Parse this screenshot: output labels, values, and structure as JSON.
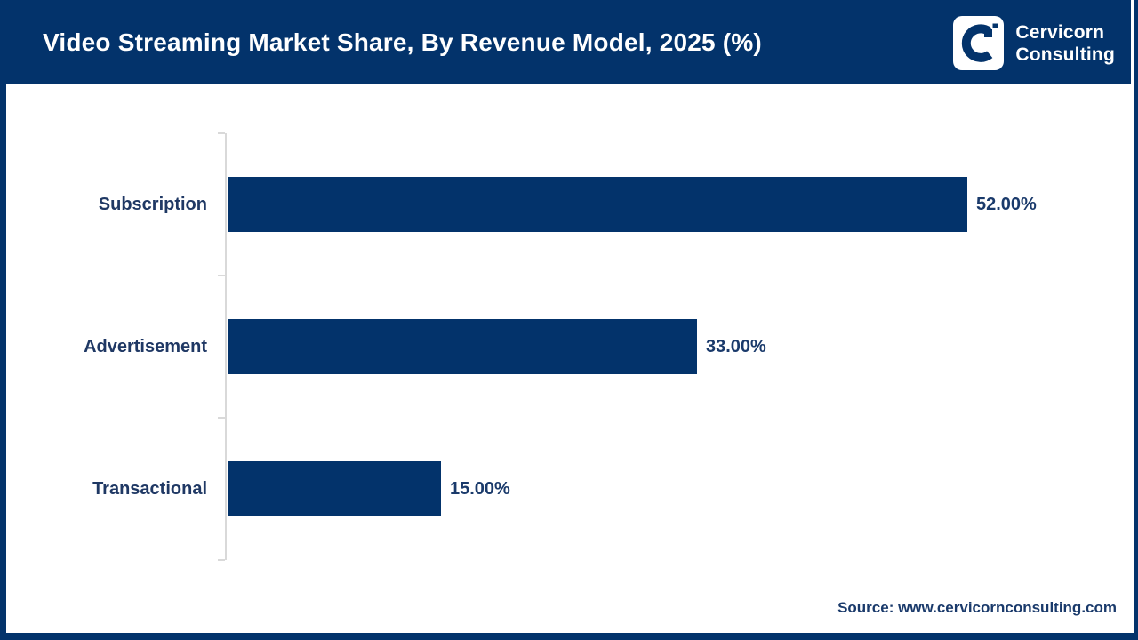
{
  "header": {
    "title": "Video Streaming Market Share, By Revenue Model, 2025 (%)",
    "brand": {
      "line1": "Cervicorn",
      "line2": "Consulting"
    }
  },
  "chart_data": {
    "type": "bar",
    "orientation": "horizontal",
    "title": "Video Streaming Market Share, By Revenue Model, 2025 (%)",
    "categories": [
      "Subscription",
      "Advertisement",
      "Transactional"
    ],
    "values": [
      52,
      33,
      15
    ],
    "value_labels": [
      "52.00%",
      "33.00%",
      "15.00%"
    ],
    "unit": "%",
    "xlim": [
      0,
      62.5
    ],
    "grid": false,
    "legend": "none",
    "bar_color": "#03336b",
    "axis_color": "#d9d9d9",
    "label_color": "#1f3864"
  },
  "footer": {
    "source": "Source: www.cervicornconsulting.com"
  },
  "colors": {
    "navy": "#03336b",
    "label_navy": "#1f3864",
    "axis_gray": "#d9d9d9",
    "background": "#ffffff"
  }
}
